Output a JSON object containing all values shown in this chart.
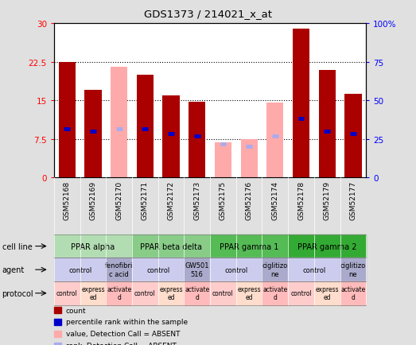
{
  "title": "GDS1373 / 214021_x_at",
  "samples": [
    "GSM52168",
    "GSM52169",
    "GSM52170",
    "GSM52171",
    "GSM52172",
    "GSM52173",
    "GSM52175",
    "GSM52176",
    "GSM52174",
    "GSM52178",
    "GSM52179",
    "GSM52177"
  ],
  "count_values": [
    22.5,
    17.0,
    null,
    20.0,
    16.0,
    14.7,
    null,
    null,
    null,
    29.0,
    21.0,
    16.2
  ],
  "rank_values": [
    9.5,
    9.0,
    null,
    9.5,
    8.5,
    8.0,
    null,
    null,
    null,
    11.5,
    9.0,
    8.5
  ],
  "absent_count_values": [
    null,
    null,
    21.5,
    null,
    null,
    null,
    6.8,
    7.5,
    14.5,
    null,
    null,
    null
  ],
  "absent_rank_values": [
    null,
    null,
    9.5,
    null,
    null,
    null,
    6.5,
    6.0,
    8.0,
    null,
    null,
    null
  ],
  "ylim": [
    0,
    30
  ],
  "yticks": [
    0,
    7.5,
    15,
    22.5,
    30
  ],
  "ytick_labels": [
    "0",
    "7.5",
    "15",
    "22.5",
    "30"
  ],
  "y2ticks": [
    0,
    25,
    50,
    75,
    100
  ],
  "y2tick_labels": [
    "0",
    "25",
    "50",
    "75",
    "100%"
  ],
  "cell_line_groups": [
    {
      "label": "PPAR alpha",
      "cols": [
        0,
        1,
        2
      ],
      "color": "#b2ddb2"
    },
    {
      "label": "PPAR beta delta",
      "cols": [
        3,
        4,
        5
      ],
      "color": "#88cc88"
    },
    {
      "label": "PPAR gamma 1",
      "cols": [
        6,
        7,
        8
      ],
      "color": "#55bb55"
    },
    {
      "label": "PPAR gamma 2",
      "cols": [
        9,
        10,
        11
      ],
      "color": "#33aa33"
    }
  ],
  "agent_groups": [
    {
      "label": "control",
      "cols": [
        0,
        1
      ],
      "color": "#ccccee"
    },
    {
      "label": "fenofibri\nc acid",
      "cols": [
        2
      ],
      "color": "#aaaacc"
    },
    {
      "label": "control",
      "cols": [
        3,
        4
      ],
      "color": "#ccccee"
    },
    {
      "label": "GW501\n516",
      "cols": [
        5
      ],
      "color": "#aaaacc"
    },
    {
      "label": "control",
      "cols": [
        6,
        7
      ],
      "color": "#ccccee"
    },
    {
      "label": "ciglitizo\nne",
      "cols": [
        8
      ],
      "color": "#aaaacc"
    },
    {
      "label": "control",
      "cols": [
        9,
        10
      ],
      "color": "#ccccee"
    },
    {
      "label": "ciglitizo\nne",
      "cols": [
        11
      ],
      "color": "#aaaacc"
    }
  ],
  "protocol_groups": [
    {
      "label": "control",
      "cols": [
        0
      ],
      "color": "#ffcccc"
    },
    {
      "label": "express\ned",
      "cols": [
        1
      ],
      "color": "#ffddcc"
    },
    {
      "label": "activate\nd",
      "cols": [
        2
      ],
      "color": "#ffbbbb"
    },
    {
      "label": "control",
      "cols": [
        3
      ],
      "color": "#ffcccc"
    },
    {
      "label": "express\ned",
      "cols": [
        4
      ],
      "color": "#ffddcc"
    },
    {
      "label": "activate\nd",
      "cols": [
        5
      ],
      "color": "#ffbbbb"
    },
    {
      "label": "control",
      "cols": [
        6
      ],
      "color": "#ffcccc"
    },
    {
      "label": "express\ned",
      "cols": [
        7
      ],
      "color": "#ffddcc"
    },
    {
      "label": "activate\nd",
      "cols": [
        8
      ],
      "color": "#ffbbbb"
    },
    {
      "label": "control",
      "cols": [
        9
      ],
      "color": "#ffcccc"
    },
    {
      "label": "express\ned",
      "cols": [
        10
      ],
      "color": "#ffddcc"
    },
    {
      "label": "activate\nd",
      "cols": [
        11
      ],
      "color": "#ffbbbb"
    }
  ],
  "bar_color_present": "#aa0000",
  "bar_color_absent": "#ffaaaa",
  "rank_color_present": "#0000cc",
  "rank_color_absent": "#aaaaee",
  "fig_bg": "#e0e0e0",
  "plot_bg": "#ffffff",
  "gray_bg": "#c8c8c8"
}
